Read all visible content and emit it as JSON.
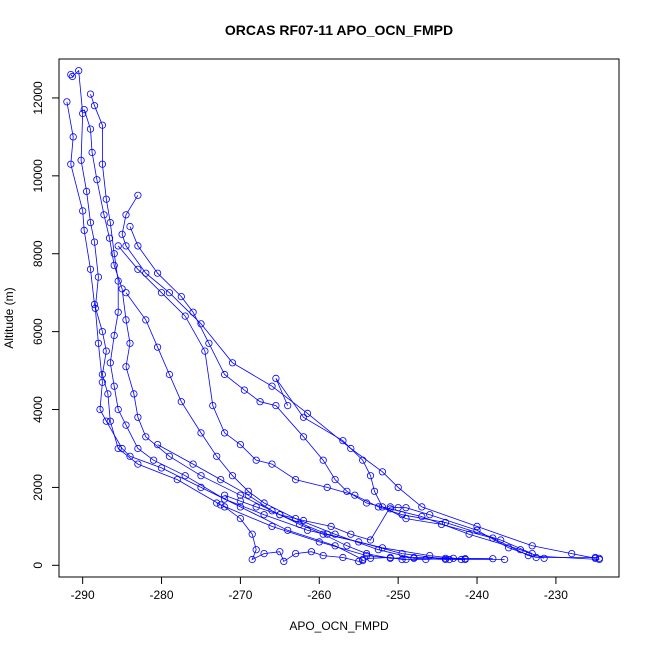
{
  "chart_data": {
    "type": "line",
    "title": "ORCAS RF07-11 APO_OCN_FMPD",
    "xlabel": "APO_OCN_FMPD",
    "ylabel": "Altitude (m)",
    "xlim": [
      -293,
      -222
    ],
    "ylim": [
      -300,
      13000
    ],
    "xticks": [
      -290,
      -280,
      -270,
      -260,
      -250,
      -240,
      -230
    ],
    "yticks": [
      0,
      2000,
      4000,
      6000,
      8000,
      10000,
      12000
    ],
    "grid": false,
    "legend": "none",
    "color": "#0000ff",
    "series": [
      {
        "points": [
          [
            -291.5,
            12600
          ],
          [
            -291.3,
            12550
          ],
          [
            -290.5,
            12700
          ],
          [
            -290.0,
            11600
          ],
          [
            -290.2,
            10400
          ],
          [
            -289.5,
            9600
          ],
          [
            -289.0,
            8800
          ],
          [
            -288.5,
            8300
          ],
          [
            -288.0,
            7400
          ],
          [
            -288.4,
            6600
          ],
          [
            -288.0,
            5700
          ],
          [
            -287.5,
            4700
          ],
          [
            -287.8,
            4000
          ],
          [
            -287.0,
            3700
          ],
          [
            -285.0,
            3000
          ],
          [
            -284.0,
            2800
          ],
          [
            -280.0,
            2500
          ],
          [
            -275.0,
            2000
          ],
          [
            -270.0,
            1500
          ],
          [
            -264.0,
            900
          ],
          [
            -258.0,
            500
          ],
          [
            -254.5,
            150
          ]
        ]
      },
      {
        "points": [
          [
            -292.0,
            11900
          ],
          [
            -291.2,
            11000
          ],
          [
            -291.5,
            10300
          ],
          [
            -290.0,
            9100
          ],
          [
            -289.8,
            8600
          ],
          [
            -289.0,
            7600
          ],
          [
            -288.5,
            6700
          ],
          [
            -287.5,
            6000
          ],
          [
            -287.0,
            5500
          ],
          [
            -287.5,
            4900
          ],
          [
            -286.8,
            4400
          ],
          [
            -286.5,
            3700
          ],
          [
            -285.5,
            3000
          ],
          [
            -283.0,
            2600
          ],
          [
            -278.0,
            2200
          ],
          [
            -272.5,
            1550
          ],
          [
            -266.0,
            1000
          ],
          [
            -260.0,
            600
          ],
          [
            -254.0,
            250
          ],
          [
            -249.0,
            150
          ]
        ]
      },
      {
        "points": [
          [
            -289.0,
            12100
          ],
          [
            -288.5,
            11800
          ],
          [
            -287.5,
            11300
          ],
          [
            -287.5,
            10300
          ],
          [
            -287.0,
            9400
          ],
          [
            -286.5,
            8800
          ],
          [
            -286.0,
            8000
          ],
          [
            -285.5,
            7300
          ],
          [
            -285.5,
            6500
          ],
          [
            -286.0,
            5900
          ],
          [
            -286.5,
            5200
          ],
          [
            -286.0,
            4600
          ],
          [
            -285.5,
            4000
          ],
          [
            -284.5,
            3600
          ],
          [
            -283.0,
            3000
          ],
          [
            -281.0,
            2700
          ],
          [
            -277.0,
            2300
          ],
          [
            -272.0,
            1700
          ],
          [
            -267.0,
            1300
          ],
          [
            -261.5,
            900
          ],
          [
            -255.0,
            600
          ],
          [
            -249.5,
            300
          ],
          [
            -243.5,
            150
          ]
        ]
      },
      {
        "points": [
          [
            -289.8,
            11700
          ],
          [
            -289.0,
            11200
          ],
          [
            -288.8,
            10600
          ],
          [
            -288.2,
            9900
          ],
          [
            -287.3,
            9000
          ],
          [
            -286.6,
            8400
          ],
          [
            -286.0,
            7700
          ],
          [
            -285.0,
            7100
          ],
          [
            -284.5,
            6300
          ],
          [
            -284.0,
            5700
          ],
          [
            -284.5,
            5100
          ],
          [
            -283.5,
            4400
          ],
          [
            -283.0,
            3800
          ],
          [
            -282.0,
            3300
          ],
          [
            -279.0,
            2800
          ],
          [
            -275.0,
            2300
          ],
          [
            -270.0,
            1800
          ],
          [
            -265.0,
            1300
          ],
          [
            -259.0,
            800
          ],
          [
            -252.0,
            450
          ],
          [
            -246.0,
            250
          ],
          [
            -241.5,
            150
          ]
        ]
      },
      {
        "points": [
          [
            -283.0,
            9500
          ],
          [
            -284.5,
            9000
          ],
          [
            -285.0,
            8500
          ],
          [
            -284.5,
            8200
          ],
          [
            -282.0,
            7500
          ],
          [
            -279.0,
            7000
          ],
          [
            -275.0,
            6200
          ],
          [
            -271.0,
            5200
          ],
          [
            -266.0,
            4600
          ],
          [
            -261.5,
            3900
          ],
          [
            -256.0,
            3000
          ],
          [
            -252.0,
            2400
          ],
          [
            -250.0,
            2000
          ],
          [
            -247.0,
            1500
          ],
          [
            -240.0,
            1000
          ],
          [
            -233.0,
            500
          ],
          [
            -228.0,
            300
          ],
          [
            -225.0,
            180
          ]
        ]
      },
      {
        "points": [
          [
            -284.0,
            8700
          ],
          [
            -283.0,
            8200
          ],
          [
            -280.5,
            7500
          ],
          [
            -277.5,
            6900
          ],
          [
            -276.0,
            6500
          ],
          [
            -274.0,
            5700
          ],
          [
            -272.0,
            4900
          ],
          [
            -269.5,
            4500
          ],
          [
            -267.5,
            4200
          ],
          [
            -265.5,
            4100
          ],
          [
            -262.0,
            3300
          ],
          [
            -259.5,
            2700
          ],
          [
            -258.0,
            2200
          ],
          [
            -256.5,
            1900
          ],
          [
            -254.0,
            1600
          ],
          [
            -251.0,
            1450
          ],
          [
            -247.0,
            1250
          ],
          [
            -241.0,
            800
          ],
          [
            -234.5,
            400
          ],
          [
            -231.5,
            180
          ]
        ]
      },
      {
        "points": [
          [
            -285.5,
            8200
          ],
          [
            -283.0,
            7600
          ],
          [
            -280.0,
            7000
          ],
          [
            -277.0,
            6400
          ],
          [
            -274.5,
            5500
          ],
          [
            -273.5,
            4100
          ],
          [
            -272.0,
            3400
          ],
          [
            -270.0,
            3100
          ],
          [
            -268.0,
            2700
          ],
          [
            -266.0,
            2600
          ],
          [
            -263.0,
            2200
          ],
          [
            -259.0,
            2000
          ],
          [
            -255.5,
            1800
          ],
          [
            -252.5,
            1500
          ],
          [
            -249.5,
            1300
          ],
          [
            -244.0,
            1100
          ],
          [
            -237.0,
            650
          ],
          [
            -233.0,
            300
          ]
        ]
      },
      {
        "points": [
          [
            -284.5,
            7000
          ],
          [
            -282.0,
            6300
          ],
          [
            -280.5,
            5600
          ],
          [
            -279.0,
            4900
          ],
          [
            -277.5,
            4200
          ],
          [
            -275.0,
            3400
          ],
          [
            -273.0,
            2800
          ],
          [
            -271.0,
            2300
          ],
          [
            -269.0,
            1900
          ],
          [
            -267.0,
            1600
          ],
          [
            -263.0,
            1200
          ],
          [
            -258.0,
            800
          ],
          [
            -252.5,
            400
          ],
          [
            -248.0,
            180
          ],
          [
            -244.0,
            150
          ],
          [
            -236.5,
            150
          ]
        ]
      },
      {
        "points": [
          [
            -273.0,
            1600
          ],
          [
            -272.0,
            1500
          ],
          [
            -270.0,
            1200
          ],
          [
            -268.5,
            800
          ],
          [
            -268.0,
            400
          ],
          [
            -268.5,
            150
          ],
          [
            -267.0,
            300
          ],
          [
            -265.0,
            350
          ],
          [
            -264.5,
            100
          ],
          [
            -263.0,
            300
          ],
          [
            -261.0,
            350
          ],
          [
            -259.5,
            250
          ],
          [
            -257.0,
            200
          ],
          [
            -255.0,
            100
          ],
          [
            -254.5,
            120
          ],
          [
            -253.5,
            180
          ],
          [
            -251.0,
            200
          ],
          [
            -249.5,
            150
          ],
          [
            -246.5,
            150
          ],
          [
            -244.0,
            180
          ],
          [
            -242.0,
            150
          ],
          [
            -241.5,
            170
          ]
        ]
      },
      {
        "points": [
          [
            -280.5,
            3100
          ],
          [
            -276.0,
            2600
          ],
          [
            -272.5,
            2200
          ],
          [
            -269.0,
            1800
          ],
          [
            -266.0,
            1400
          ],
          [
            -262.5,
            1050
          ],
          [
            -259.5,
            800
          ],
          [
            -256.5,
            500
          ],
          [
            -254.0,
            300
          ],
          [
            -251.0,
            180
          ],
          [
            -248.0,
            200
          ],
          [
            -243.0,
            180
          ],
          [
            -238.0,
            170
          ]
        ]
      },
      {
        "points": [
          [
            -272.0,
            1800
          ],
          [
            -270.0,
            1650
          ],
          [
            -268.0,
            1500
          ],
          [
            -265.0,
            1300
          ],
          [
            -262.0,
            1150
          ],
          [
            -258.5,
            1000
          ],
          [
            -256.0,
            800
          ],
          [
            -253.5,
            650
          ],
          [
            -251.0,
            1500
          ],
          [
            -250.0,
            1480
          ],
          [
            -249.0,
            1480
          ],
          [
            -246.0,
            1300
          ],
          [
            -240.0,
            900
          ],
          [
            -236.0,
            450
          ],
          [
            -232.5,
            200
          ],
          [
            -225.0,
            200
          ],
          [
            -224.5,
            180
          ]
        ]
      },
      {
        "points": [
          [
            -264.0,
            4100
          ],
          [
            -265.5,
            4800
          ],
          [
            -262.0,
            3800
          ],
          [
            -257.0,
            3200
          ],
          [
            -254.5,
            2700
          ],
          [
            -253.5,
            2300
          ],
          [
            -253.0,
            1900
          ],
          [
            -252.0,
            1500
          ],
          [
            -249.0,
            1200
          ],
          [
            -244.5,
            1050
          ],
          [
            -238.0,
            700
          ],
          [
            -233.5,
            250
          ],
          [
            -224.5,
            150
          ]
        ]
      }
    ]
  }
}
